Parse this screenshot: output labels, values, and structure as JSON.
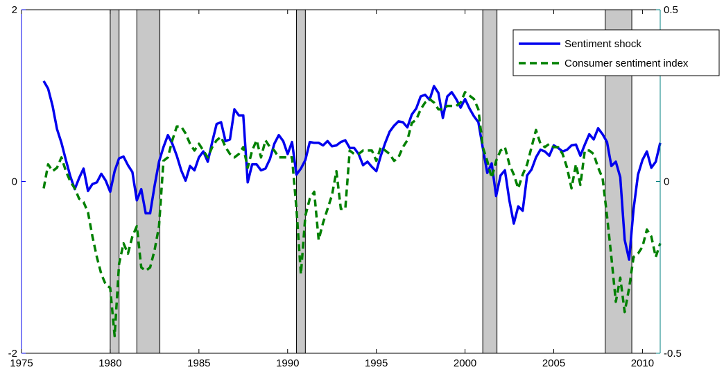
{
  "chart_data": {
    "type": "line",
    "title": "",
    "xlabel": "",
    "ylabel_left": "",
    "ylabel_right": "",
    "xlim": [
      1975,
      2011
    ],
    "ylim_left": [
      -2,
      2
    ],
    "ylim_right": [
      -0.5,
      0.5
    ],
    "x_ticks": [
      "1975",
      "1980",
      "1985",
      "1990",
      "1995",
      "2000",
      "2005",
      "2010"
    ],
    "y_ticks_left": [
      "-2",
      "0",
      "2"
    ],
    "y_ticks_right": [
      "-0.5",
      "0",
      "0.5"
    ],
    "grid": false,
    "legend_position": "top-right",
    "recessions": [
      [
        1980.0,
        1980.5
      ],
      [
        1981.5,
        1982.8
      ],
      [
        1990.5,
        1991.0
      ],
      [
        2001.0,
        2001.8
      ],
      [
        2007.9,
        2009.4
      ]
    ],
    "colors": {
      "shock": "#0000ee",
      "index": "#008000",
      "recession": "#c8c8c8"
    },
    "series": [
      {
        "name": "Sentiment shock",
        "axis": "left",
        "style": "solid",
        "points": [
          [
            1976.25,
            1.17
          ],
          [
            1976.5,
            1.08
          ],
          [
            1976.75,
            0.88
          ],
          [
            1977.0,
            0.61
          ],
          [
            1977.25,
            0.45
          ],
          [
            1977.5,
            0.25
          ],
          [
            1977.75,
            0.06
          ],
          [
            1978.0,
            -0.09
          ],
          [
            1978.25,
            0.04
          ],
          [
            1978.5,
            0.15
          ],
          [
            1978.75,
            -0.11
          ],
          [
            1979.0,
            -0.03
          ],
          [
            1979.25,
            -0.01
          ],
          [
            1979.5,
            0.09
          ],
          [
            1979.75,
            0.01
          ],
          [
            1980.0,
            -0.12
          ],
          [
            1980.25,
            0.12
          ],
          [
            1980.5,
            0.27
          ],
          [
            1980.75,
            0.29
          ],
          [
            1981.0,
            0.19
          ],
          [
            1981.25,
            0.11
          ],
          [
            1981.5,
            -0.22
          ],
          [
            1981.75,
            -0.09
          ],
          [
            1982.0,
            -0.37
          ],
          [
            1982.25,
            -0.37
          ],
          [
            1982.5,
            -0.05
          ],
          [
            1982.75,
            0.23
          ],
          [
            1983.0,
            0.4
          ],
          [
            1983.25,
            0.54
          ],
          [
            1983.5,
            0.44
          ],
          [
            1983.75,
            0.3
          ],
          [
            1984.0,
            0.13
          ],
          [
            1984.25,
            0.01
          ],
          [
            1984.5,
            0.18
          ],
          [
            1984.75,
            0.13
          ],
          [
            1985.0,
            0.28
          ],
          [
            1985.25,
            0.35
          ],
          [
            1985.5,
            0.23
          ],
          [
            1985.75,
            0.46
          ],
          [
            1986.0,
            0.67
          ],
          [
            1986.25,
            0.69
          ],
          [
            1986.5,
            0.47
          ],
          [
            1986.75,
            0.49
          ],
          [
            1987.0,
            0.84
          ],
          [
            1987.25,
            0.77
          ],
          [
            1987.5,
            0.77
          ],
          [
            1987.75,
            -0.01
          ],
          [
            1988.0,
            0.2
          ],
          [
            1988.25,
            0.2
          ],
          [
            1988.5,
            0.13
          ],
          [
            1988.75,
            0.15
          ],
          [
            1989.0,
            0.26
          ],
          [
            1989.25,
            0.44
          ],
          [
            1989.5,
            0.54
          ],
          [
            1989.75,
            0.47
          ],
          [
            1990.0,
            0.32
          ],
          [
            1990.25,
            0.46
          ],
          [
            1990.5,
            0.08
          ],
          [
            1990.75,
            0.15
          ],
          [
            1991.0,
            0.25
          ],
          [
            1991.25,
            0.46
          ],
          [
            1991.5,
            0.45
          ],
          [
            1991.75,
            0.45
          ],
          [
            1992.0,
            0.42
          ],
          [
            1992.25,
            0.47
          ],
          [
            1992.5,
            0.41
          ],
          [
            1992.75,
            0.42
          ],
          [
            1993.0,
            0.46
          ],
          [
            1993.25,
            0.48
          ],
          [
            1993.5,
            0.39
          ],
          [
            1993.75,
            0.39
          ],
          [
            1994.0,
            0.32
          ],
          [
            1994.25,
            0.19
          ],
          [
            1994.5,
            0.23
          ],
          [
            1994.75,
            0.17
          ],
          [
            1995.0,
            0.12
          ],
          [
            1995.25,
            0.3
          ],
          [
            1995.5,
            0.45
          ],
          [
            1995.75,
            0.58
          ],
          [
            1996.0,
            0.65
          ],
          [
            1996.25,
            0.7
          ],
          [
            1996.5,
            0.69
          ],
          [
            1996.75,
            0.63
          ],
          [
            1997.0,
            0.78
          ],
          [
            1997.25,
            0.85
          ],
          [
            1997.5,
            0.99
          ],
          [
            1997.75,
            1.01
          ],
          [
            1998.0,
            0.95
          ],
          [
            1998.25,
            1.11
          ],
          [
            1998.5,
            1.03
          ],
          [
            1998.75,
            0.74
          ],
          [
            1999.0,
            0.99
          ],
          [
            1999.25,
            1.04
          ],
          [
            1999.5,
            0.96
          ],
          [
            1999.75,
            0.86
          ],
          [
            2000.0,
            0.96
          ],
          [
            2000.25,
            0.85
          ],
          [
            2000.5,
            0.76
          ],
          [
            2000.75,
            0.69
          ],
          [
            2001.0,
            0.39
          ],
          [
            2001.25,
            0.1
          ],
          [
            2001.5,
            0.21
          ],
          [
            2001.75,
            -0.17
          ],
          [
            2002.0,
            0.07
          ],
          [
            2002.25,
            0.13
          ],
          [
            2002.5,
            -0.22
          ],
          [
            2002.75,
            -0.49
          ],
          [
            2003.0,
            -0.29
          ],
          [
            2003.25,
            -0.34
          ],
          [
            2003.5,
            0.07
          ],
          [
            2003.75,
            0.14
          ],
          [
            2004.0,
            0.28
          ],
          [
            2004.25,
            0.37
          ],
          [
            2004.5,
            0.35
          ],
          [
            2004.75,
            0.3
          ],
          [
            2005.0,
            0.42
          ],
          [
            2005.25,
            0.39
          ],
          [
            2005.5,
            0.35
          ],
          [
            2005.75,
            0.37
          ],
          [
            2006.0,
            0.42
          ],
          [
            2006.25,
            0.43
          ],
          [
            2006.5,
            0.3
          ],
          [
            2006.75,
            0.43
          ],
          [
            2007.0,
            0.55
          ],
          [
            2007.25,
            0.49
          ],
          [
            2007.5,
            0.62
          ],
          [
            2007.75,
            0.55
          ],
          [
            2008.0,
            0.46
          ],
          [
            2008.25,
            0.18
          ],
          [
            2008.5,
            0.23
          ],
          [
            2008.75,
            0.05
          ],
          [
            2009.0,
            -0.68
          ],
          [
            2009.25,
            -0.91
          ],
          [
            2009.5,
            -0.32
          ],
          [
            2009.75,
            0.08
          ],
          [
            2010.0,
            0.25
          ],
          [
            2010.25,
            0.35
          ],
          [
            2010.5,
            0.16
          ],
          [
            2010.75,
            0.23
          ],
          [
            2011.0,
            0.45
          ]
        ]
      },
      {
        "name": "Consumer sentiment index",
        "axis": "right",
        "style": "dashed",
        "points": [
          [
            1976.25,
            -0.02
          ],
          [
            1976.5,
            0.05
          ],
          [
            1976.75,
            0.03
          ],
          [
            1977.0,
            0.04
          ],
          [
            1977.25,
            0.07
          ],
          [
            1977.5,
            0.03
          ],
          [
            1977.75,
            0.0
          ],
          [
            1978.0,
            -0.02
          ],
          [
            1978.25,
            -0.05
          ],
          [
            1978.5,
            -0.06
          ],
          [
            1978.75,
            -0.09
          ],
          [
            1979.0,
            -0.16
          ],
          [
            1979.25,
            -0.22
          ],
          [
            1979.5,
            -0.27
          ],
          [
            1979.75,
            -0.3
          ],
          [
            1980.0,
            -0.31
          ],
          [
            1980.25,
            -0.45
          ],
          [
            1980.5,
            -0.24
          ],
          [
            1980.75,
            -0.18
          ],
          [
            1981.0,
            -0.21
          ],
          [
            1981.25,
            -0.16
          ],
          [
            1981.5,
            -0.13
          ],
          [
            1981.75,
            -0.25
          ],
          [
            1982.0,
            -0.26
          ],
          [
            1982.25,
            -0.25
          ],
          [
            1982.5,
            -0.2
          ],
          [
            1982.75,
            -0.13
          ],
          [
            1983.0,
            0.06
          ],
          [
            1983.25,
            0.07
          ],
          [
            1983.5,
            0.12
          ],
          [
            1983.75,
            0.16
          ],
          [
            1984.0,
            0.16
          ],
          [
            1984.25,
            0.14
          ],
          [
            1984.5,
            0.11
          ],
          [
            1984.75,
            0.09
          ],
          [
            1985.0,
            0.11
          ],
          [
            1985.25,
            0.09
          ],
          [
            1985.5,
            0.07
          ],
          [
            1985.75,
            0.1
          ],
          [
            1986.0,
            0.12
          ],
          [
            1986.25,
            0.13
          ],
          [
            1986.5,
            0.1
          ],
          [
            1986.75,
            0.08
          ],
          [
            1987.0,
            0.07
          ],
          [
            1987.25,
            0.08
          ],
          [
            1987.5,
            0.1
          ],
          [
            1987.75,
            0.04
          ],
          [
            1988.0,
            0.09
          ],
          [
            1988.25,
            0.12
          ],
          [
            1988.5,
            0.07
          ],
          [
            1988.75,
            0.12
          ],
          [
            1989.0,
            0.1
          ],
          [
            1989.25,
            0.09
          ],
          [
            1989.5,
            0.07
          ],
          [
            1989.75,
            0.07
          ],
          [
            1990.0,
            0.07
          ],
          [
            1990.25,
            0.07
          ],
          [
            1990.5,
            -0.08
          ],
          [
            1990.75,
            -0.27
          ],
          [
            1991.0,
            -0.1
          ],
          [
            1991.25,
            -0.05
          ],
          [
            1991.5,
            -0.03
          ],
          [
            1991.75,
            -0.17
          ],
          [
            1992.0,
            -0.12
          ],
          [
            1992.25,
            -0.08
          ],
          [
            1992.5,
            -0.04
          ],
          [
            1992.75,
            0.03
          ],
          [
            1993.0,
            -0.08
          ],
          [
            1993.25,
            -0.08
          ],
          [
            1993.5,
            0.09
          ],
          [
            1993.75,
            0.08
          ],
          [
            1994.0,
            0.08
          ],
          [
            1994.25,
            0.09
          ],
          [
            1994.5,
            0.09
          ],
          [
            1994.75,
            0.09
          ],
          [
            1995.0,
            0.06
          ],
          [
            1995.25,
            0.1
          ],
          [
            1995.5,
            0.09
          ],
          [
            1995.75,
            0.08
          ],
          [
            1996.0,
            0.06
          ],
          [
            1996.25,
            0.07
          ],
          [
            1996.5,
            0.1
          ],
          [
            1996.75,
            0.12
          ],
          [
            1997.0,
            0.17
          ],
          [
            1997.25,
            0.18
          ],
          [
            1997.5,
            0.21
          ],
          [
            1997.75,
            0.23
          ],
          [
            1998.0,
            0.24
          ],
          [
            1998.25,
            0.23
          ],
          [
            1998.5,
            0.21
          ],
          [
            1998.75,
            0.21
          ],
          [
            1999.0,
            0.22
          ],
          [
            1999.25,
            0.22
          ],
          [
            1999.5,
            0.22
          ],
          [
            1999.75,
            0.23
          ],
          [
            2000.0,
            0.26
          ],
          [
            2000.25,
            0.25
          ],
          [
            2000.5,
            0.24
          ],
          [
            2000.75,
            0.21
          ],
          [
            2001.0,
            0.1
          ],
          [
            2001.25,
            0.06
          ],
          [
            2001.5,
            0.01
          ],
          [
            2001.75,
            0.06
          ],
          [
            2002.0,
            0.09
          ],
          [
            2002.25,
            0.1
          ],
          [
            2002.5,
            0.05
          ],
          [
            2002.75,
            0.02
          ],
          [
            2003.0,
            -0.02
          ],
          [
            2003.25,
            0.02
          ],
          [
            2003.5,
            0.05
          ],
          [
            2003.75,
            0.1
          ],
          [
            2004.0,
            0.15
          ],
          [
            2004.25,
            0.11
          ],
          [
            2004.5,
            0.1
          ],
          [
            2004.75,
            0.11
          ],
          [
            2005.0,
            0.1
          ],
          [
            2005.25,
            0.1
          ],
          [
            2005.5,
            0.08
          ],
          [
            2005.75,
            0.04
          ],
          [
            2006.0,
            -0.02
          ],
          [
            2006.25,
            0.05
          ],
          [
            2006.5,
            -0.01
          ],
          [
            2006.75,
            0.09
          ],
          [
            2007.0,
            0.09
          ],
          [
            2007.25,
            0.08
          ],
          [
            2007.5,
            0.04
          ],
          [
            2007.75,
            0.01
          ],
          [
            2008.0,
            -0.1
          ],
          [
            2008.25,
            -0.22
          ],
          [
            2008.5,
            -0.35
          ],
          [
            2008.75,
            -0.28
          ],
          [
            2009.0,
            -0.38
          ],
          [
            2009.25,
            -0.31
          ],
          [
            2009.5,
            -0.22
          ],
          [
            2009.75,
            -0.21
          ],
          [
            2010.0,
            -0.19
          ],
          [
            2010.25,
            -0.14
          ],
          [
            2010.5,
            -0.16
          ],
          [
            2010.75,
            -0.22
          ],
          [
            2011.0,
            -0.18
          ]
        ]
      }
    ]
  }
}
